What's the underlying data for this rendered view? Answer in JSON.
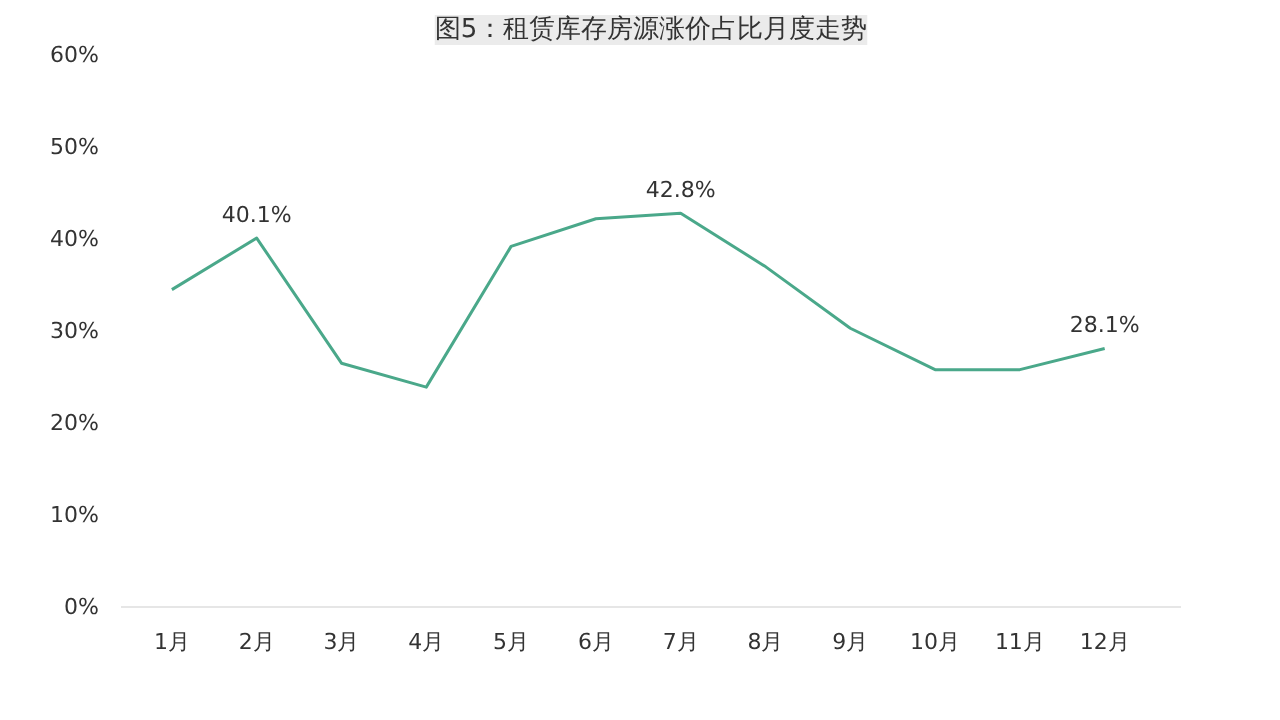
{
  "chart_data": {
    "type": "line",
    "title": "图5：租赁库存房源涨价占比月度走势",
    "categories": [
      "1月",
      "2月",
      "3月",
      "4月",
      "5月",
      "6月",
      "7月",
      "8月",
      "9月",
      "10月",
      "11月",
      "12月"
    ],
    "series": [
      {
        "color": "#4aa88a",
        "values": [
          34.5,
          40.1,
          26.5,
          23.9,
          39.2,
          42.2,
          42.8,
          37.0,
          30.3,
          25.8,
          25.8,
          28.1
        ],
        "value_labels": [
          null,
          "40.1%",
          null,
          null,
          null,
          null,
          "42.8%",
          null,
          null,
          null,
          null,
          "28.1%"
        ]
      }
    ],
    "ylim": [
      0,
      60
    ],
    "yticks": [
      {
        "value": 0,
        "label": "0%"
      },
      {
        "value": 10,
        "label": "10%"
      },
      {
        "value": 20,
        "label": "20%"
      },
      {
        "value": 30,
        "label": "30%"
      },
      {
        "value": 40,
        "label": "40%"
      },
      {
        "value": 50,
        "label": "50%"
      },
      {
        "value": 60,
        "label": "60%"
      }
    ],
    "grid": false,
    "marker": "none",
    "line_style": "solid"
  }
}
